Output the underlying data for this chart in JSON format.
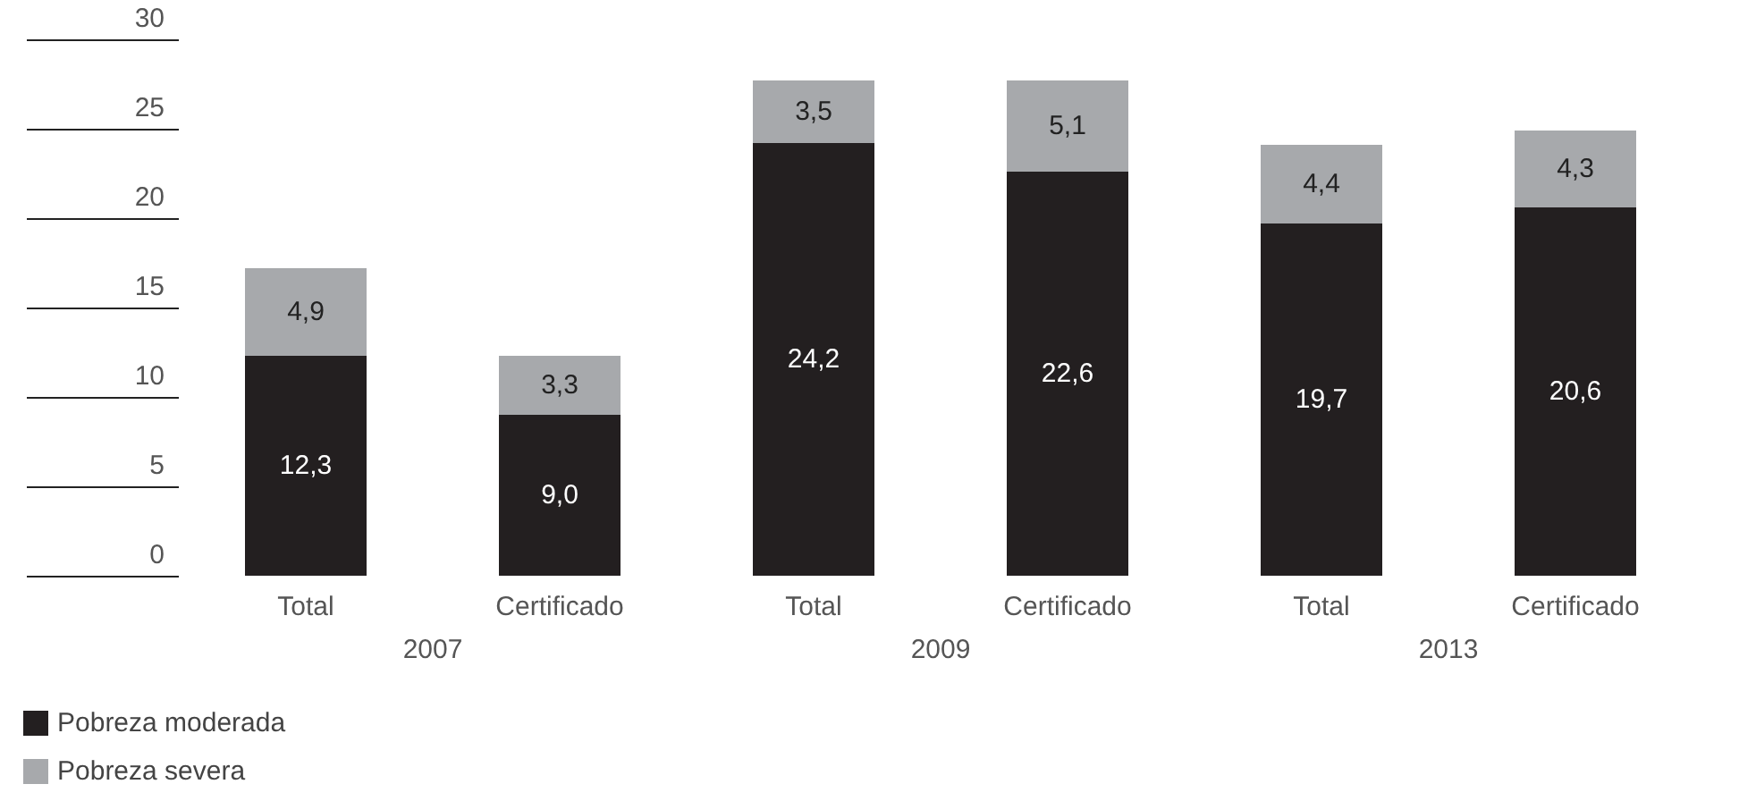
{
  "chart_data": {
    "type": "bar",
    "stacked": true,
    "categories": [
      "Total",
      "Certificado",
      "Total",
      "Certificado",
      "Total",
      "Certificado"
    ],
    "series": [
      {
        "name": "Pobreza moderada",
        "color": "#231f20",
        "values": [
          12.3,
          9.0,
          24.2,
          22.6,
          19.7,
          20.6
        ]
      },
      {
        "name": "Pobreza severa",
        "color": "#a7a9ac",
        "values": [
          4.9,
          3.3,
          3.5,
          5.1,
          4.4,
          4.3
        ]
      }
    ],
    "value_labels": [
      [
        "12,3",
        "9,0",
        "24,2",
        "22,6",
        "19,7",
        "20,6"
      ],
      [
        "4,9",
        "3,3",
        "3,5",
        "5,1",
        "4,4",
        "4,3"
      ]
    ],
    "annotations": [
      "2007",
      "2009",
      "2013"
    ],
    "ylim": [
      0,
      30
    ],
    "yticks": [
      0,
      5,
      10,
      15,
      20,
      25,
      30
    ],
    "grid": false,
    "legend": "bottom left"
  }
}
